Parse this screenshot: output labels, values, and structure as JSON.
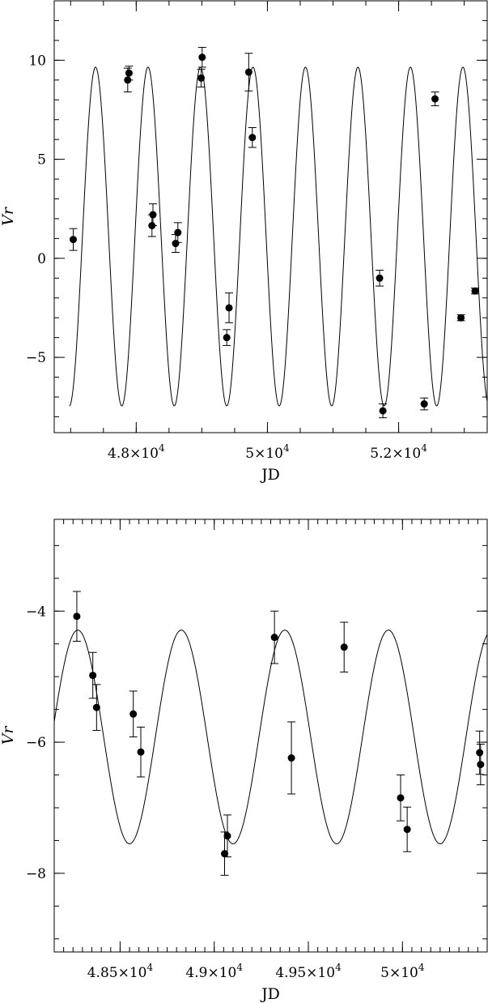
{
  "chart_data": [
    {
      "type": "scatter",
      "title": "",
      "xlabel": "JD",
      "ylabel": "Vr",
      "xlim": [
        46750,
        53350
      ],
      "ylim": [
        -8.8,
        13
      ],
      "x_ticks": [
        {
          "value": 48000,
          "label": "4.8×10",
          "exp": "4"
        },
        {
          "value": 50000,
          "label": "5×10",
          "exp": "4"
        },
        {
          "value": 52000,
          "label": "5.2×10",
          "exp": "4"
        }
      ],
      "y_ticks": [
        {
          "value": -5,
          "label": "−5"
        },
        {
          "value": 0,
          "label": "0"
        },
        {
          "value": 5,
          "label": "5"
        },
        {
          "value": 10,
          "label": "10"
        }
      ],
      "x_minor_step": 500,
      "y_minor_step": 1,
      "fit_curve": {
        "mean": 1.1,
        "amplitude": 8.55,
        "period": 800,
        "peak_jd": 47380,
        "x_start": 46980,
        "x_end": 53350
      },
      "series": [
        {
          "x": [
            47040,
            47870,
            47890,
            48240,
            48255,
            48600,
            48635,
            48990,
            49005,
            49380,
            49415,
            49715,
            49770,
            51710,
            51760,
            52390,
            52555,
            52950,
            53165
          ],
          "y": [
            0.95,
            9.0,
            9.35,
            1.65,
            2.2,
            0.75,
            1.3,
            9.1,
            10.15,
            -4.0,
            -2.5,
            9.4,
            6.1,
            -1.0,
            -7.7,
            -7.35,
            8.05,
            -3.0,
            -1.65
          ],
          "err": [
            0.55,
            0.6,
            0.35,
            0.55,
            0.55,
            0.45,
            0.5,
            0.45,
            0.5,
            0.4,
            0.75,
            0.95,
            0.5,
            0.4,
            0.35,
            0.3,
            0.35,
            0.15,
            0.15
          ]
        }
      ]
    },
    {
      "type": "scatter",
      "title": "",
      "xlabel": "JD",
      "ylabel": "Vr",
      "xlim": [
        48150,
        50450
      ],
      "ylim": [
        -9.2,
        -2.6
      ],
      "x_ticks": [
        {
          "value": 48500,
          "label": "4.85×10",
          "exp": "4"
        },
        {
          "value": 49000,
          "label": "4.9×10",
          "exp": "4"
        },
        {
          "value": 49500,
          "label": "4.95×10",
          "exp": "4"
        },
        {
          "value": 50000,
          "label": "5×10",
          "exp": "4"
        }
      ],
      "y_ticks": [
        {
          "value": -8,
          "label": "−8"
        },
        {
          "value": -6,
          "label": "−6"
        },
        {
          "value": -4,
          "label": "−4"
        }
      ],
      "x_minor_step": 50,
      "y_minor_step": 0.5,
      "fit_curve": {
        "mean": -5.92,
        "amplitude": 1.63,
        "period": 550,
        "peak_jd": 48275,
        "x_start": 48150,
        "x_end": 50450
      },
      "series": [
        {
          "x": [
            48270,
            48355,
            48375,
            48570,
            48610,
            49055,
            49070,
            49320,
            49410,
            49690,
            49990,
            50025,
            50410,
            50415
          ],
          "y": [
            -4.08,
            -4.98,
            -5.47,
            -5.57,
            -6.15,
            -7.7,
            -7.43,
            -4.4,
            -6.24,
            -4.55,
            -6.85,
            -7.33,
            -6.16,
            -6.34
          ],
          "err": [
            0.38,
            0.35,
            0.35,
            0.35,
            0.38,
            0.33,
            0.32,
            0.4,
            0.55,
            0.38,
            0.35,
            0.34,
            0.33,
            0.31
          ]
        }
      ]
    }
  ]
}
